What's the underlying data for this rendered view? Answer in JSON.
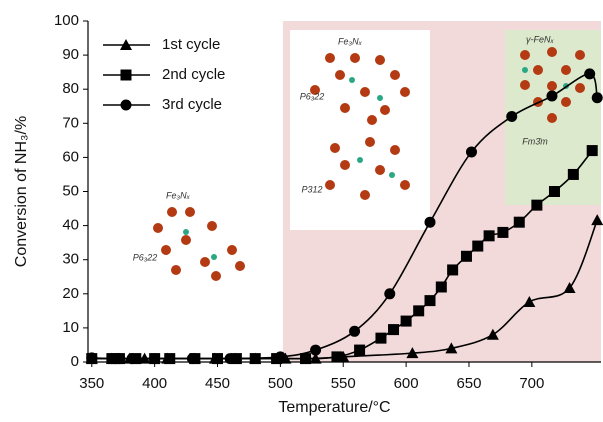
{
  "chart_data": {
    "type": "line",
    "x_label": "Temperature/°C",
    "y_label": "Conversion of NH₃/%",
    "xlim": [
      347,
      755
    ],
    "xticks": [
      350,
      400,
      450,
      500,
      550,
      600,
      650,
      700
    ],
    "ylim": [
      0,
      100
    ],
    "yticks": [
      0,
      10,
      20,
      30,
      40,
      50,
      60,
      70,
      80,
      90,
      100
    ],
    "shaded_from": 502,
    "shade_color": "#f3dada",
    "series": [
      {
        "name": "1st cycle",
        "color": "#000000",
        "marker": "triangle",
        "x": [
          350,
          366,
          371,
          380,
          392,
          410,
          432,
          448,
          464,
          480,
          504,
          528,
          550,
          605,
          636,
          669,
          698,
          730,
          752
        ],
        "values": [
          1,
          1,
          1,
          1,
          1,
          1,
          1,
          1,
          1,
          1,
          1,
          1,
          1.5,
          2.6,
          4,
          8,
          17.6,
          21.7,
          41.6
        ]
      },
      {
        "name": "2nd cycle",
        "color": "#000000",
        "marker": "square",
        "x": [
          350,
          366,
          372,
          385,
          400,
          412,
          432,
          450,
          465,
          480,
          497,
          520,
          545,
          563,
          580,
          590,
          600,
          610,
          619,
          628,
          637,
          648,
          657,
          666,
          677,
          690,
          704,
          718,
          733,
          748
        ],
        "values": [
          1,
          1,
          1,
          1,
          1,
          1,
          1,
          1,
          1,
          1,
          1,
          1,
          1.5,
          3.5,
          7,
          9.5,
          12,
          15,
          18,
          22,
          27,
          31,
          34,
          37,
          38,
          41,
          46,
          50,
          55,
          62
        ]
      },
      {
        "name": "3rd cycle",
        "color": "#000000",
        "marker": "circle",
        "x": [
          350,
          366,
          372,
          382,
          400,
          430,
          460,
          500,
          528,
          559,
          587,
          619,
          652,
          684,
          716,
          746,
          752
        ],
        "values": [
          1.2,
          1,
          1,
          1,
          1,
          1,
          1,
          1.5,
          3.5,
          9,
          20,
          41,
          61.6,
          72,
          78,
          84.5,
          77.5
        ]
      }
    ],
    "annotations": [
      "Fe₃Nₓ",
      "P6₃22",
      "Fe₃Nₓ",
      "P6₃22",
      "P312",
      "γ-FeNₓ",
      "Fm3̄m"
    ]
  }
}
